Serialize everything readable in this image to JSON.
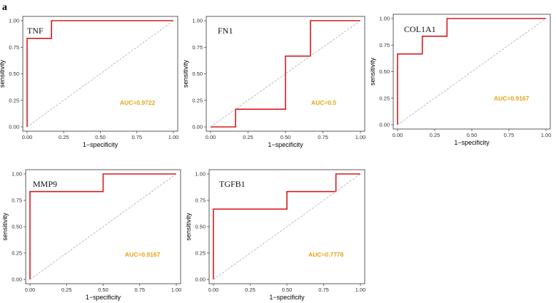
{
  "figure": {
    "panel_label": "a",
    "colors": {
      "roc_line": "#d7191c",
      "diagonal": "#aaaaaa",
      "auc_text": "#e8a317",
      "frame": "#333333"
    }
  },
  "chart_data": [
    {
      "type": "line",
      "title": "TNF",
      "xlabel": "1−specificity",
      "ylabel": "sensitivity",
      "xlim": [
        0,
        1
      ],
      "ylim": [
        0,
        1
      ],
      "x_ticks": [
        "0.00",
        "0.25",
        "0.50",
        "0.75",
        "1.00"
      ],
      "y_ticks": [
        "0.00",
        "0.25",
        "0.50",
        "0.75",
        "1.00"
      ],
      "annotation": "AUC=0.9722",
      "auc": 0.9722,
      "series": [
        {
          "name": "ROC",
          "x": [
            0,
            0,
            0.1667,
            0.1667,
            1
          ],
          "y": [
            0,
            0.8333,
            0.8333,
            1,
            1
          ]
        },
        {
          "name": "reference",
          "x": [
            0,
            1
          ],
          "y": [
            0,
            1
          ]
        }
      ]
    },
    {
      "type": "line",
      "title": "FN1",
      "xlabel": "1−specificity",
      "ylabel": "sensitivity",
      "xlim": [
        0,
        1
      ],
      "ylim": [
        0,
        1
      ],
      "x_ticks": [
        "0.00",
        "0.25",
        "0.50",
        "0.75",
        "1.00"
      ],
      "y_ticks": [
        "0.00",
        "0.25",
        "0.50",
        "0.75",
        "1.00"
      ],
      "annotation": "AUC=0.5",
      "auc": 0.5,
      "series": [
        {
          "name": "ROC",
          "x": [
            0,
            0.1667,
            0.1667,
            0.5,
            0.5,
            0.6667,
            0.6667,
            1
          ],
          "y": [
            0,
            0,
            0.1667,
            0.1667,
            0.6667,
            0.6667,
            1,
            1
          ]
        },
        {
          "name": "reference",
          "x": [
            0,
            1
          ],
          "y": [
            0,
            1
          ]
        }
      ]
    },
    {
      "type": "line",
      "title": "COL1A1",
      "xlabel": "1−specificity",
      "ylabel": "sensitivity",
      "xlim": [
        0,
        1
      ],
      "ylim": [
        0,
        1
      ],
      "x_ticks": [
        "0.00",
        "0.25",
        "0.50",
        "0.75",
        "1.00"
      ],
      "y_ticks": [
        "0.00",
        "0.25",
        "0.50",
        "0.75",
        "1.00"
      ],
      "annotation": "AUC=0.9167",
      "auc": 0.9167,
      "series": [
        {
          "name": "ROC",
          "x": [
            0,
            0,
            0.1667,
            0.1667,
            0.3333,
            0.3333,
            1
          ],
          "y": [
            0,
            0.6667,
            0.6667,
            0.8333,
            0.8333,
            1,
            1
          ]
        },
        {
          "name": "reference",
          "x": [
            0,
            1
          ],
          "y": [
            0,
            1
          ]
        }
      ]
    },
    {
      "type": "line",
      "title": "MMP9",
      "xlabel": "1−specificity",
      "ylabel": "sensitivity",
      "xlim": [
        0,
        1
      ],
      "ylim": [
        0,
        1
      ],
      "x_ticks": [
        "0.00",
        "0.25",
        "0.50",
        "0.75",
        "1.00"
      ],
      "y_ticks": [
        "0.00",
        "0.25",
        "0.50",
        "0.75",
        "1.00"
      ],
      "annotation": "AUC=0.9167",
      "auc": 0.9167,
      "series": [
        {
          "name": "ROC",
          "x": [
            0,
            0,
            0.5,
            0.5,
            1
          ],
          "y": [
            0,
            0.8333,
            0.8333,
            1,
            1
          ]
        },
        {
          "name": "reference",
          "x": [
            0,
            1
          ],
          "y": [
            0,
            1
          ]
        }
      ]
    },
    {
      "type": "line",
      "title": "TGFB1",
      "xlabel": "1−specificity",
      "ylabel": "sensitivity",
      "xlim": [
        0,
        1
      ],
      "ylim": [
        0,
        1
      ],
      "x_ticks": [
        "0.00",
        "0.25",
        "0.50",
        "0.75",
        "1.00"
      ],
      "y_ticks": [
        "0.00",
        "0.25",
        "0.50",
        "0.75",
        "1.00"
      ],
      "annotation": "AUC=0.7778",
      "auc": 0.7778,
      "series": [
        {
          "name": "ROC",
          "x": [
            0,
            0,
            0.5,
            0.5,
            0.8333,
            0.8333,
            1
          ],
          "y": [
            0,
            0.6667,
            0.6667,
            0.8333,
            0.8333,
            1,
            1
          ]
        },
        {
          "name": "reference",
          "x": [
            0,
            1
          ],
          "y": [
            0,
            1
          ]
        }
      ]
    }
  ]
}
